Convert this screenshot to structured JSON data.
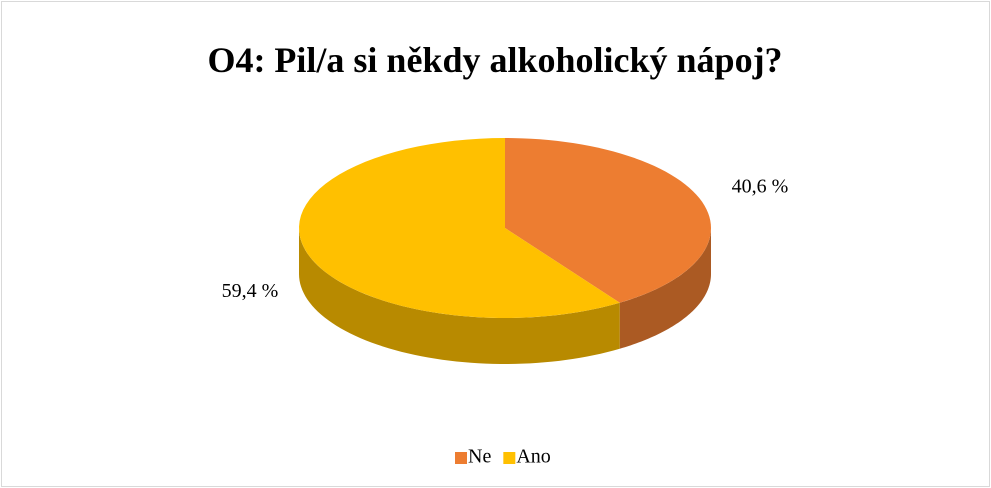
{
  "chart_data": {
    "type": "pie3d",
    "title": "O4: Pil/a si někdy alkoholický nápoj?",
    "categories": [
      "Ne",
      "Ano"
    ],
    "values": [
      40.6,
      59.4
    ],
    "value_labels": [
      "40,6 %",
      "59,4 %"
    ],
    "colors": [
      "#ed7d31",
      "#ffc000"
    ],
    "legend": "bottom"
  }
}
